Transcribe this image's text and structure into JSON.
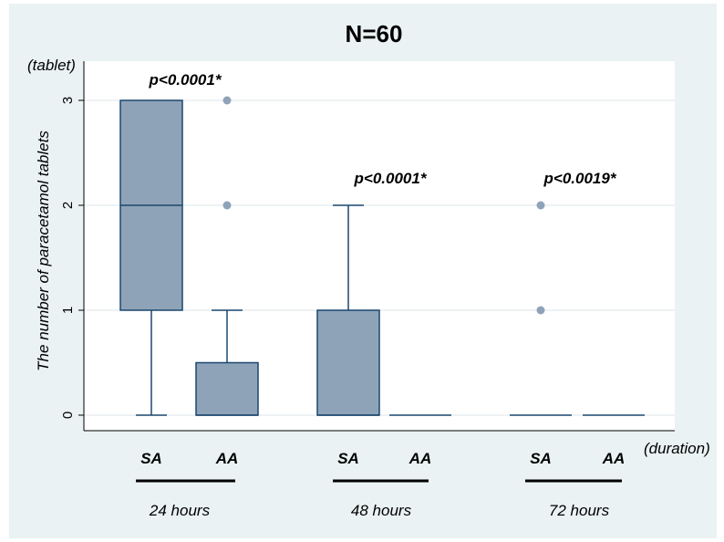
{
  "colors": {
    "background": "#eaf2f3",
    "plot_background": "#ffffff",
    "box_fill": "#8fa3b8",
    "box_stroke": "#1a476f",
    "outlier": "#8fa3b8",
    "text": "#000000"
  },
  "chart_data": {
    "type": "box",
    "title": "N=60",
    "ylabel": "The number of paracetamol tablets",
    "y_unit_label": "(tablet)",
    "x_unit_label": "(duration)",
    "ylim": [
      0,
      3
    ],
    "yticks": [
      "0",
      "1",
      "2",
      "3"
    ],
    "grid": true,
    "groups": [
      {
        "label": "24 hours",
        "pvalue": "p<0.0001*",
        "boxes": [
          {
            "name": "SA",
            "min": 0,
            "q1": 1,
            "median": 2,
            "q3": 3,
            "max": 3,
            "outliers": []
          },
          {
            "name": "AA",
            "min": 0,
            "q1": 0,
            "median": 0,
            "q3": 0.5,
            "max": 1,
            "outliers": [
              2,
              3
            ]
          }
        ]
      },
      {
        "label": "48 hours",
        "pvalue": "p<0.0001*",
        "boxes": [
          {
            "name": "SA",
            "min": 0,
            "q1": 0,
            "median": 0,
            "q3": 1,
            "max": 2,
            "outliers": []
          },
          {
            "name": "AA",
            "min": 0,
            "q1": 0,
            "median": 0,
            "q3": 0,
            "max": 0,
            "outliers": []
          }
        ]
      },
      {
        "label": "72 hours",
        "pvalue": "p<0.0019*",
        "boxes": [
          {
            "name": "SA",
            "min": 0,
            "q1": 0,
            "median": 0,
            "q3": 0,
            "max": 0,
            "outliers": [
              1,
              2
            ]
          },
          {
            "name": "AA",
            "min": 0,
            "q1": 0,
            "median": 0,
            "q3": 0,
            "max": 0,
            "outliers": []
          }
        ]
      }
    ]
  }
}
